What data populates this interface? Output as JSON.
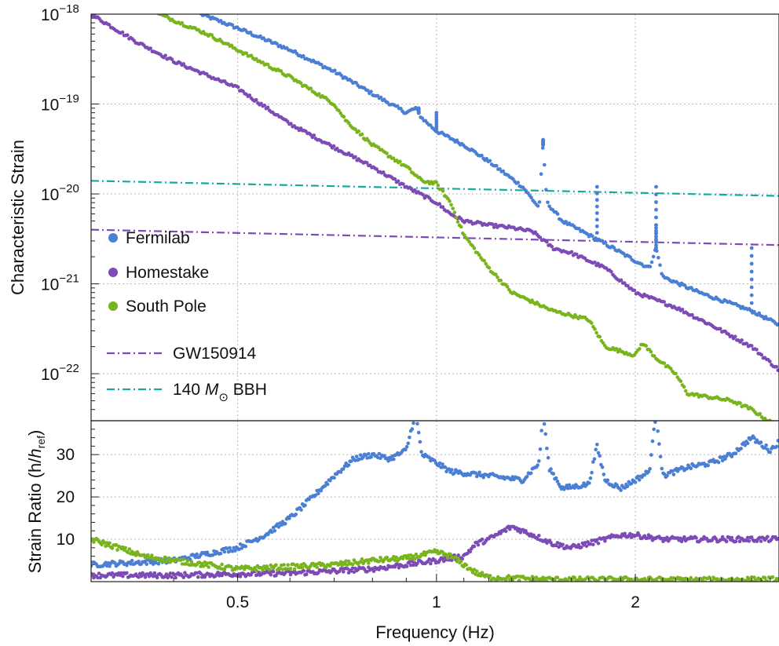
{
  "chart_data": [
    {
      "type": "scatter",
      "panel": "top",
      "title": "",
      "xlabel": "",
      "ylabel": "Characteristic Strain",
      "xscale": "log",
      "yscale": "log",
      "xlim": [
        0.3,
        3.3
      ],
      "ylim": [
        3e-23,
        1e-18
      ],
      "yticks_labels": [
        "10",
        "10",
        "10",
        "10",
        "10"
      ],
      "yticks_exponents": [
        "−18",
        "−19",
        "−20",
        "−21",
        "−22"
      ],
      "yticks_values": [
        1e-18,
        1e-19,
        1e-20,
        1e-21,
        1e-22
      ],
      "grid": true,
      "legend_placement": "left",
      "series": [
        {
          "name": "Fermilab",
          "color": "#4a7fd4",
          "marker": "dot",
          "points": [
            [
              0.44,
              1e-18
            ],
            [
              0.5,
              7e-19
            ],
            [
              0.6,
              4e-19
            ],
            [
              0.7,
              2.3e-19
            ],
            [
              0.8,
              1.3e-19
            ],
            [
              0.9,
              8e-20
            ],
            [
              0.93,
              9e-20
            ],
            [
              0.95,
              7e-20
            ],
            [
              1.0,
              5e-20
            ],
            [
              1.1,
              3.5e-20
            ],
            [
              1.2,
              2.3e-20
            ],
            [
              1.35,
              1.2e-20
            ],
            [
              1.43,
              7e-21
            ],
            [
              1.45,
              3.5e-20
            ],
            [
              1.47,
              8e-21
            ],
            [
              1.55,
              5e-21
            ],
            [
              1.7,
              3.5e-21
            ],
            [
              1.85,
              2.5e-21
            ],
            [
              2.0,
              1.8e-21
            ],
            [
              2.1,
              1.5e-21
            ],
            [
              2.15,
              2.5e-21
            ],
            [
              2.2,
              1.2e-21
            ],
            [
              2.5,
              8e-22
            ],
            [
              3.0,
              5e-22
            ],
            [
              3.3,
              3.5e-22
            ]
          ],
          "peaks": [
            [
              0.94,
              9e-20
            ],
            [
              1.0,
              8e-20
            ],
            [
              1.45,
              4e-20
            ],
            [
              1.75,
              1.2e-20
            ],
            [
              2.15,
              1.2e-20
            ],
            [
              2.15,
              4.5e-21
            ],
            [
              3.0,
              2.5e-21
            ]
          ]
        },
        {
          "name": "Homestake",
          "color": "#7d4bb5",
          "marker": "dot",
          "points": [
            [
              0.3,
              1e-18
            ],
            [
              0.35,
              5e-19
            ],
            [
              0.4,
              3e-19
            ],
            [
              0.5,
              1.5e-19
            ],
            [
              0.6,
              6e-20
            ],
            [
              0.7,
              3.3e-20
            ],
            [
              0.8,
              2e-20
            ],
            [
              0.9,
              1.2e-20
            ],
            [
              1.0,
              8e-21
            ],
            [
              1.05,
              6e-21
            ],
            [
              1.1,
              5e-21
            ],
            [
              1.2,
              4.5e-21
            ],
            [
              1.3,
              4.2e-21
            ],
            [
              1.4,
              3.8e-21
            ],
            [
              1.5,
              2.5e-21
            ],
            [
              1.6,
              2.2e-21
            ],
            [
              1.8,
              1.5e-21
            ],
            [
              2.0,
              8e-22
            ],
            [
              2.3,
              5.5e-22
            ],
            [
              2.6,
              3.5e-22
            ],
            [
              3.0,
              2e-22
            ],
            [
              3.3,
              1.1e-22
            ]
          ]
        },
        {
          "name": "South Pole",
          "color": "#79b41e",
          "marker": "dot",
          "points": [
            [
              0.38,
              1e-18
            ],
            [
              0.45,
              6e-19
            ],
            [
              0.5,
              4e-19
            ],
            [
              0.6,
              2e-19
            ],
            [
              0.7,
              1e-19
            ],
            [
              0.73,
              6.5e-20
            ],
            [
              0.8,
              3.5e-20
            ],
            [
              0.9,
              2e-20
            ],
            [
              0.95,
              1.4e-20
            ],
            [
              1.0,
              1.3e-20
            ],
            [
              1.05,
              8e-21
            ],
            [
              1.1,
              3.5e-21
            ],
            [
              1.2,
              1.5e-21
            ],
            [
              1.3,
              8e-22
            ],
            [
              1.5,
              5e-22
            ],
            [
              1.7,
              4e-22
            ],
            [
              1.8,
              2e-22
            ],
            [
              2.0,
              1.6e-22
            ],
            [
              2.05,
              2.2e-22
            ],
            [
              2.15,
              1.5e-22
            ],
            [
              2.3,
              1e-22
            ],
            [
              2.4,
              6e-23
            ],
            [
              2.8,
              5e-23
            ],
            [
              3.0,
              4e-23
            ],
            [
              3.3,
              2.5e-23
            ]
          ]
        },
        {
          "name": "GW150914",
          "color": "#7d4bb5",
          "marker": "dash-dot",
          "points": [
            [
              0.3,
              4e-21
            ],
            [
              3.3,
              2.7e-21
            ]
          ]
        },
        {
          "name": "140 M⊙ BBH",
          "color": "#13aba0",
          "marker": "dash-dot",
          "points": [
            [
              0.3,
              1.4e-20
            ],
            [
              3.3,
              9.5e-21
            ]
          ]
        }
      ],
      "legend": {
        "dots": [
          "Fermilab",
          "Homestake",
          "South Pole"
        ],
        "lines": [
          "GW150914",
          "140 "
        ],
        "m_italic": "M",
        "sun_symbol": "⊙",
        "bbh_suffix": " BBH"
      }
    },
    {
      "type": "scatter",
      "panel": "bottom",
      "title": "",
      "xlabel": "Frequency (Hz)",
      "ylabel_parts": [
        "Strain Ratio (h/",
        "h",
        "ref",
        ")"
      ],
      "xscale": "log",
      "yscale": "linear",
      "xlim": [
        0.3,
        3.3
      ],
      "ylim": [
        0,
        38
      ],
      "yticks": [
        "10",
        "20",
        "30"
      ],
      "xticks": [
        "0.5",
        "1",
        "2"
      ],
      "grid": true,
      "series": [
        {
          "name": "Fermilab",
          "color": "#4a7fd4",
          "points": [
            [
              0.3,
              4
            ],
            [
              0.35,
              4.5
            ],
            [
              0.4,
              5
            ],
            [
              0.5,
              8
            ],
            [
              0.55,
              11
            ],
            [
              0.6,
              15
            ],
            [
              0.65,
              20
            ],
            [
              0.7,
              25
            ],
            [
              0.75,
              29
            ],
            [
              0.8,
              30
            ],
            [
              0.85,
              29
            ],
            [
              0.9,
              31
            ],
            [
              0.93,
              40
            ],
            [
              0.95,
              30
            ],
            [
              1.0,
              28
            ],
            [
              1.05,
              26
            ],
            [
              1.2,
              25
            ],
            [
              1.35,
              24
            ],
            [
              1.43,
              28
            ],
            [
              1.45,
              40
            ],
            [
              1.48,
              27
            ],
            [
              1.55,
              22
            ],
            [
              1.7,
              23
            ],
            [
              1.75,
              32
            ],
            [
              1.8,
              24
            ],
            [
              1.9,
              22
            ],
            [
              2.0,
              24
            ],
            [
              2.1,
              26
            ],
            [
              2.15,
              40
            ],
            [
              2.2,
              25
            ],
            [
              2.4,
              27
            ],
            [
              2.6,
              28
            ],
            [
              2.8,
              30
            ],
            [
              3.0,
              34
            ],
            [
              3.2,
              31
            ],
            [
              3.3,
              33
            ]
          ]
        },
        {
          "name": "Homestake",
          "color": "#7d4bb5",
          "points": [
            [
              0.3,
              1.5
            ],
            [
              0.4,
              1.5
            ],
            [
              0.5,
              1.8
            ],
            [
              0.6,
              2
            ],
            [
              0.7,
              2.5
            ],
            [
              0.8,
              3
            ],
            [
              0.9,
              4
            ],
            [
              1.0,
              5
            ],
            [
              1.1,
              6
            ],
            [
              1.15,
              9
            ],
            [
              1.2,
              10
            ],
            [
              1.3,
              13
            ],
            [
              1.4,
              11
            ],
            [
              1.5,
              9
            ],
            [
              1.6,
              8
            ],
            [
              1.7,
              9
            ],
            [
              1.8,
              10
            ],
            [
              1.9,
              11
            ],
            [
              2.0,
              11
            ],
            [
              2.2,
              10
            ],
            [
              2.5,
              10
            ],
            [
              2.8,
              10
            ],
            [
              3.0,
              10
            ],
            [
              3.3,
              10
            ]
          ]
        },
        {
          "name": "South Pole",
          "color": "#79b41e",
          "points": [
            [
              0.3,
              10
            ],
            [
              0.33,
              8
            ],
            [
              0.36,
              6
            ],
            [
              0.4,
              5
            ],
            [
              0.5,
              3
            ],
            [
              0.6,
              3.5
            ],
            [
              0.7,
              4
            ],
            [
              0.8,
              5
            ],
            [
              0.9,
              5.5
            ],
            [
              1.0,
              7
            ],
            [
              1.05,
              6
            ],
            [
              1.1,
              4
            ],
            [
              1.15,
              2
            ],
            [
              1.2,
              1
            ],
            [
              1.5,
              0.5
            ],
            [
              2.0,
              0.5
            ],
            [
              2.5,
              0.4
            ],
            [
              3.0,
              0.5
            ],
            [
              3.3,
              0.5
            ]
          ]
        }
      ]
    }
  ]
}
